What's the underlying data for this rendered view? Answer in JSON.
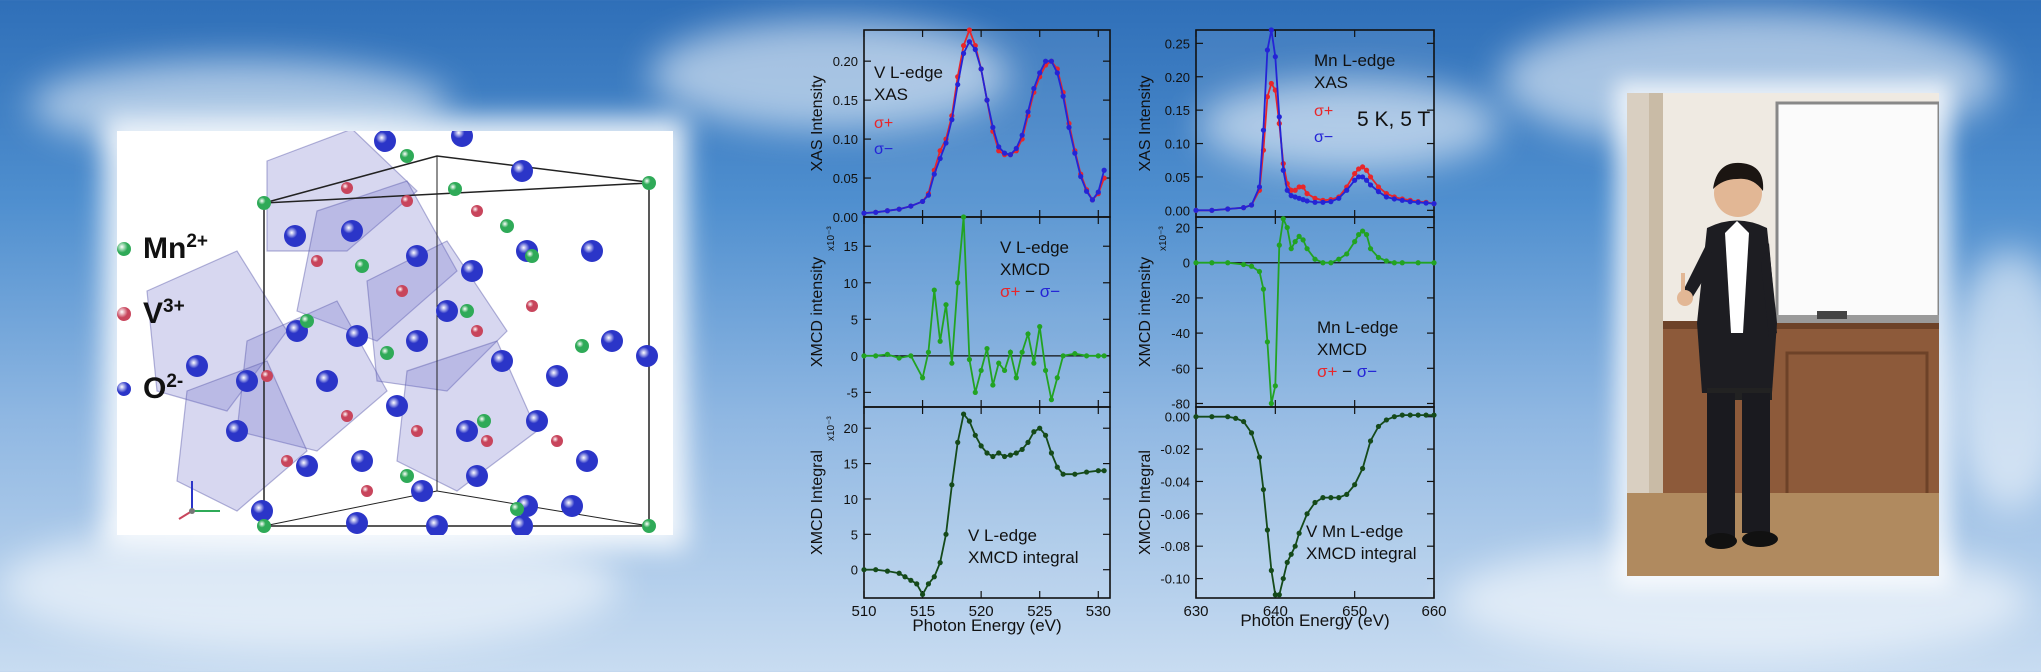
{
  "ions": [
    {
      "symbol": "Mn",
      "charge": "2+",
      "color": "#2faa58"
    },
    {
      "symbol": "V",
      "charge": "3+",
      "color": "#c8455c"
    },
    {
      "symbol": "O",
      "charge": "2-",
      "color": "#2b35c8"
    }
  ],
  "figure": {
    "xlabel": "Photon Energy (eV)",
    "condition": "5 K, 5 T",
    "colors": {
      "sigma_plus": "#e8262a",
      "sigma_minus": "#2424d6",
      "xmcd": "#22a322",
      "integral": "#154a1a"
    }
  },
  "chart_data": [
    {
      "type": "line",
      "column": "V",
      "row": "XAS",
      "ylabel": "XAS Intensity",
      "annotation": [
        "V L-edge",
        "XAS"
      ],
      "legend": [
        "σ+",
        "σ−"
      ],
      "xlim": [
        510,
        531
      ],
      "ylim": [
        0,
        0.24
      ],
      "yticks": [
        0.0,
        0.05,
        0.1,
        0.15,
        0.2
      ],
      "ytick_labels": [
        "0.00",
        "0.05",
        "0.10",
        "0.15",
        "0.20"
      ],
      "series": [
        {
          "name": "σ+",
          "x": [
            510,
            511,
            512,
            513,
            514,
            515,
            515.5,
            516,
            516.5,
            517,
            517.5,
            518,
            518.5,
            519,
            519.5,
            520,
            520.5,
            521,
            521.5,
            522,
            522.5,
            523,
            523.5,
            524,
            524.5,
            525,
            525.5,
            526,
            526.5,
            527,
            527.5,
            528,
            528.5,
            529,
            529.5,
            530,
            530.5
          ],
          "y": [
            0.005,
            0.006,
            0.008,
            0.01,
            0.014,
            0.02,
            0.03,
            0.06,
            0.085,
            0.1,
            0.13,
            0.18,
            0.22,
            0.24,
            0.22,
            0.19,
            0.15,
            0.11,
            0.085,
            0.08,
            0.08,
            0.085,
            0.1,
            0.13,
            0.16,
            0.18,
            0.195,
            0.2,
            0.19,
            0.16,
            0.12,
            0.085,
            0.055,
            0.035,
            0.022,
            0.03,
            0.05
          ]
        },
        {
          "name": "σ−",
          "x": [
            510,
            511,
            512,
            513,
            514,
            515,
            515.5,
            516,
            516.5,
            517,
            517.5,
            518,
            518.5,
            519,
            519.5,
            520,
            520.5,
            521,
            521.5,
            522,
            522.5,
            523,
            523.5,
            524,
            524.5,
            525,
            525.5,
            526,
            526.5,
            527,
            527.5,
            528,
            528.5,
            529,
            529.5,
            530,
            530.5
          ],
          "y": [
            0.005,
            0.006,
            0.008,
            0.01,
            0.014,
            0.02,
            0.028,
            0.055,
            0.075,
            0.095,
            0.125,
            0.17,
            0.21,
            0.225,
            0.215,
            0.19,
            0.15,
            0.115,
            0.09,
            0.082,
            0.08,
            0.088,
            0.105,
            0.135,
            0.165,
            0.185,
            0.2,
            0.2,
            0.185,
            0.155,
            0.115,
            0.082,
            0.052,
            0.033,
            0.022,
            0.032,
            0.06
          ]
        }
      ]
    },
    {
      "type": "line",
      "column": "V",
      "row": "XMCD",
      "ylabel": "XMCD intensity",
      "yscale_label": "x10⁻³",
      "annotation": [
        "V L-edge",
        "XMCD",
        "σ+ − σ−"
      ],
      "xlim": [
        510,
        531
      ],
      "ylim": [
        -7,
        19
      ],
      "yticks": [
        -5,
        0,
        5,
        10,
        15
      ],
      "ytick_labels": [
        "-5",
        "0",
        "5",
        "10",
        "15"
      ],
      "series": [
        {
          "name": "XMCD",
          "x": [
            510,
            511,
            512,
            513,
            514,
            515,
            515.5,
            516,
            516.5,
            517,
            517.5,
            518,
            518.5,
            519,
            519.5,
            520,
            520.5,
            521,
            521.5,
            522,
            522.5,
            523,
            523.5,
            524,
            524.5,
            525,
            525.5,
            526,
            526.5,
            527,
            528,
            529,
            530,
            530.5
          ],
          "y": [
            0,
            0,
            0.2,
            -0.3,
            0,
            -3,
            0.5,
            9,
            2,
            7,
            -1,
            10,
            19,
            -0.5,
            -5,
            -2,
            1,
            -4,
            -1,
            -2,
            0.5,
            -3,
            0.5,
            3,
            -1,
            4,
            -2,
            -6,
            -3,
            0,
            0.3,
            0,
            0,
            0
          ]
        }
      ]
    },
    {
      "type": "line",
      "column": "V",
      "row": "integral",
      "ylabel": "XMCD Integral",
      "yscale_label": "x10⁻³",
      "annotation": [
        "V L-edge",
        "XMCD integral"
      ],
      "xlim": [
        510,
        531
      ],
      "ylim": [
        -4,
        23
      ],
      "yticks": [
        0,
        5,
        10,
        15,
        20
      ],
      "ytick_labels": [
        "0",
        "5",
        "10",
        "15",
        "20"
      ],
      "xticks": [
        510,
        515,
        520,
        525,
        530
      ],
      "series": [
        {
          "name": "integral",
          "x": [
            510,
            511,
            512,
            513,
            513.5,
            514,
            514.5,
            515,
            515.5,
            516,
            516.5,
            517,
            517.5,
            518,
            518.5,
            519,
            519.5,
            520,
            520.5,
            521,
            521.5,
            522,
            522.5,
            523,
            523.5,
            524,
            524.5,
            525,
            525.5,
            526,
            526.5,
            527,
            528,
            529,
            530,
            530.5
          ],
          "y": [
            0,
            0,
            -0.2,
            -0.5,
            -1,
            -1.5,
            -2,
            -3.5,
            -2,
            -1,
            1,
            5,
            12,
            18,
            22,
            21,
            19,
            17.5,
            16.5,
            16,
            16.5,
            16,
            16.2,
            16.5,
            17,
            18,
            19.5,
            20,
            19,
            16.5,
            14.5,
            13.5,
            13.5,
            13.8,
            14,
            14
          ]
        }
      ]
    },
    {
      "type": "line",
      "column": "Mn",
      "row": "XAS",
      "ylabel": "XAS Intensity",
      "annotation": [
        "Mn L-edge",
        "XAS"
      ],
      "legend": [
        "σ+",
        "σ−"
      ],
      "xlim": [
        630,
        660
      ],
      "ylim": [
        -0.01,
        0.27
      ],
      "yticks": [
        0.0,
        0.05,
        0.1,
        0.15,
        0.2,
        0.25
      ],
      "ytick_labels": [
        "0.00",
        "0.05",
        "0.10",
        "0.15",
        "0.20",
        "0.25"
      ],
      "series": [
        {
          "name": "σ+",
          "x": [
            630,
            632,
            634,
            636,
            637,
            638,
            638.5,
            639,
            639.5,
            640,
            640.5,
            641,
            641.5,
            642,
            642.5,
            643,
            643.5,
            644,
            645,
            646,
            647,
            648,
            649,
            650,
            650.5,
            651,
            651.5,
            652,
            653,
            654,
            655,
            656,
            657,
            658,
            659,
            660
          ],
          "y": [
            0,
            0,
            0.002,
            0.004,
            0.008,
            0.03,
            0.09,
            0.17,
            0.19,
            0.18,
            0.13,
            0.07,
            0.04,
            0.03,
            0.03,
            0.035,
            0.035,
            0.025,
            0.018,
            0.015,
            0.016,
            0.02,
            0.035,
            0.055,
            0.062,
            0.065,
            0.06,
            0.05,
            0.035,
            0.025,
            0.02,
            0.017,
            0.015,
            0.013,
            0.012,
            0.01
          ]
        },
        {
          "name": "σ−",
          "x": [
            630,
            632,
            634,
            636,
            637,
            638,
            638.5,
            639,
            639.5,
            640,
            640.5,
            641,
            641.5,
            642,
            642.5,
            643,
            643.5,
            644,
            645,
            646,
            647,
            648,
            649,
            650,
            650.5,
            651,
            651.5,
            652,
            653,
            654,
            655,
            656,
            657,
            658,
            659,
            660
          ],
          "y": [
            0,
            0,
            0.002,
            0.004,
            0.008,
            0.035,
            0.12,
            0.24,
            0.27,
            0.23,
            0.14,
            0.06,
            0.03,
            0.022,
            0.02,
            0.018,
            0.016,
            0.014,
            0.012,
            0.012,
            0.013,
            0.018,
            0.03,
            0.045,
            0.05,
            0.05,
            0.045,
            0.038,
            0.028,
            0.02,
            0.017,
            0.015,
            0.013,
            0.012,
            0.011,
            0.01
          ]
        }
      ]
    },
    {
      "type": "line",
      "column": "Mn",
      "row": "XMCD",
      "ylabel": "XMCD intensity",
      "yscale_label": "x10⁻³",
      "annotation": [
        "Mn L-edge",
        "XMCD",
        "σ+ − σ−"
      ],
      "xlim": [
        630,
        660
      ],
      "ylim": [
        -82,
        26
      ],
      "yticks": [
        -80,
        -60,
        -40,
        -20,
        0,
        20
      ],
      "ytick_labels": [
        "-80",
        "-60",
        "-40",
        "-20",
        "0",
        "20"
      ],
      "series": [
        {
          "name": "XMCD",
          "x": [
            630,
            632,
            634,
            636,
            637,
            638,
            638.5,
            639,
            639.5,
            640,
            640.5,
            641,
            641.5,
            642,
            642.5,
            643,
            643.5,
            644,
            645,
            646,
            647,
            648,
            649,
            650,
            650.5,
            651,
            651.5,
            652,
            653,
            654,
            655,
            656,
            658,
            660
          ],
          "y": [
            0,
            0,
            0,
            -1,
            -2,
            -5,
            -15,
            -45,
            -80,
            -70,
            10,
            25,
            20,
            8,
            12,
            15,
            13,
            8,
            2,
            0,
            0,
            2,
            5,
            12,
            16,
            18,
            16,
            8,
            3,
            1,
            0,
            0,
            0,
            0
          ]
        }
      ]
    },
    {
      "type": "line",
      "column": "Mn",
      "row": "integral",
      "ylabel": "XMCD Integral",
      "annotation": [
        "V Mn L-edge",
        "XMCD integral"
      ],
      "xlim": [
        630,
        660
      ],
      "ylim": [
        -0.112,
        0.006
      ],
      "yticks": [
        0.0,
        -0.02,
        -0.04,
        -0.06,
        -0.08,
        -0.1
      ],
      "ytick_labels": [
        "0.00",
        "-0.02",
        "-0.04",
        "-0.06",
        "-0.08",
        "-0.10"
      ],
      "xticks": [
        630,
        640,
        650,
        660
      ],
      "series": [
        {
          "name": "integral",
          "x": [
            630,
            632,
            634,
            635,
            636,
            637,
            638,
            638.5,
            639,
            639.5,
            640,
            640.5,
            641,
            641.5,
            642,
            642.5,
            643,
            644,
            645,
            646,
            647,
            648,
            649,
            650,
            651,
            652,
            653,
            654,
            655,
            656,
            657,
            658,
            659,
            660
          ],
          "y": [
            0,
            0,
            0,
            -0.001,
            -0.003,
            -0.01,
            -0.025,
            -0.045,
            -0.07,
            -0.095,
            -0.11,
            -0.11,
            -0.1,
            -0.09,
            -0.085,
            -0.08,
            -0.072,
            -0.06,
            -0.053,
            -0.05,
            -0.05,
            -0.05,
            -0.048,
            -0.042,
            -0.032,
            -0.015,
            -0.006,
            -0.002,
            0,
            0.001,
            0.001,
            0.001,
            0.001,
            0.001
          ]
        }
      ]
    }
  ]
}
